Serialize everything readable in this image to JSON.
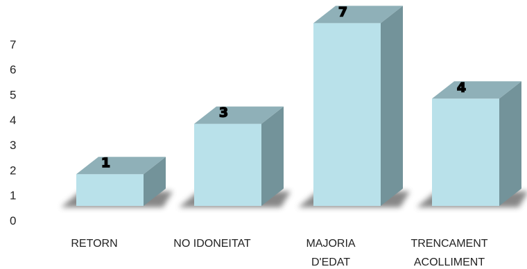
{
  "chart_data": {
    "type": "bar",
    "style": "3d-column",
    "categories": [
      [
        "RETORN"
      ],
      [
        "NO IDONEITAT"
      ],
      [
        "MAJORIA",
        "D'EDAT"
      ],
      [
        "TRENCAMENT",
        "ACOLLIMENT"
      ]
    ],
    "values": [
      1,
      3,
      7,
      4
    ],
    "data_labels": [
      "1",
      "3",
      "7",
      "4"
    ],
    "y_ticks": [
      "0",
      "1",
      "2",
      "3",
      "4",
      "5",
      "6",
      "7"
    ],
    "ylim": [
      0,
      7
    ],
    "grid": false,
    "legend": "none",
    "colors": {
      "front": "#b9e1ea",
      "top": "#8fb0b8",
      "side": "#73939a",
      "floor_shadow": "#5f5f5f"
    }
  }
}
